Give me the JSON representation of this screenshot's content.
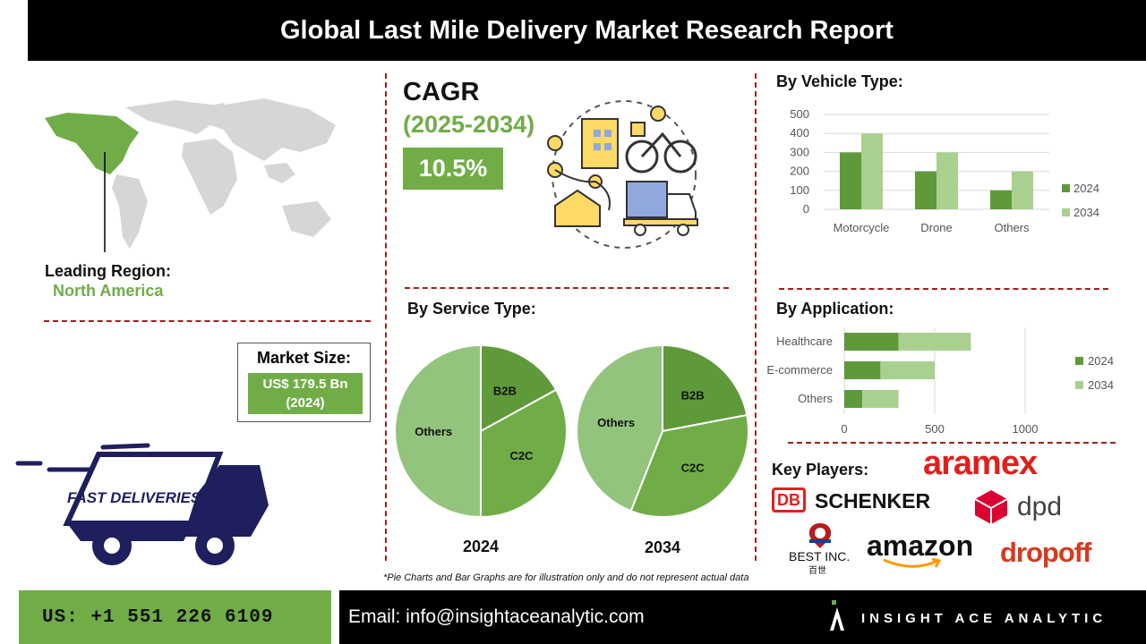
{
  "header": {
    "title": "Global Last Mile Delivery Market Research Report"
  },
  "region": {
    "label": "Leading Region:",
    "value": "North America"
  },
  "cagr": {
    "label": "CAGR",
    "period": "(2025-2034)",
    "value": "10.5%"
  },
  "market_size": {
    "label": "Market Size:",
    "value": "US$ 179.5 Bn",
    "year": "(2024)"
  },
  "truck_logo": {
    "text": "FAST DELIVERIES"
  },
  "sections": {
    "vehicle": "By Vehicle Type:",
    "service": "By Service Type:",
    "application": "By Application:",
    "key_players": "Key Players:"
  },
  "key_players": {
    "logos": [
      "aramex",
      "SCHENKER",
      "dpd",
      "BEST INC.",
      "amazon",
      "dropoff"
    ],
    "db_mark": "DB",
    "best_sub": "百世"
  },
  "disclaimer": "*Pie Charts and Bar Graphs are for illustration only and do not represent actual data",
  "footer": {
    "phone": "US: +1 551 226 6109",
    "email": "Email: info@insightaceanalytic.com",
    "brand": "INSIGHT ACE ANALYTIC"
  },
  "colors": {
    "dark_green": "#5e9a3a",
    "light_green": "#a9d08e",
    "mid_green": "#70ad47",
    "pie_light": "#93c47d",
    "accent_red": "#a51d1d",
    "navy": "#1f1f5e"
  },
  "chart_data": [
    {
      "id": "vehicle",
      "type": "bar",
      "categories": [
        "Motorcycle",
        "Drone",
        "Others"
      ],
      "series": [
        {
          "name": "2024",
          "values": [
            300,
            200,
            100
          ]
        },
        {
          "name": "2034",
          "values": [
            400,
            300,
            200
          ]
        }
      ],
      "yticks": [
        "0",
        "100",
        "200",
        "300",
        "400",
        "500"
      ],
      "ylim": [
        0,
        500
      ],
      "grid": true,
      "legend": "right"
    },
    {
      "id": "application",
      "type": "bar",
      "orientation": "horizontal-stacked",
      "categories": [
        "Healthcare",
        "E-commerce",
        "Others"
      ],
      "series": [
        {
          "name": "2024",
          "values": [
            300,
            200,
            100
          ]
        },
        {
          "name": "2034",
          "values": [
            400,
            300,
            200
          ]
        }
      ],
      "xticks": [
        "0",
        "500",
        "1000"
      ],
      "xlim": [
        0,
        1000
      ],
      "grid": true,
      "legend": "right"
    },
    {
      "id": "service-2024",
      "type": "pie",
      "title": "2024",
      "slices": [
        {
          "label": "B2B",
          "value": 17
        },
        {
          "label": "C2C",
          "value": 33
        },
        {
          "label": "Others",
          "value": 50
        }
      ]
    },
    {
      "id": "service-2034",
      "type": "pie",
      "title": "2034",
      "slices": [
        {
          "label": "B2B",
          "value": 22
        },
        {
          "label": "C2C",
          "value": 34
        },
        {
          "label": "Others",
          "value": 44
        }
      ]
    }
  ]
}
